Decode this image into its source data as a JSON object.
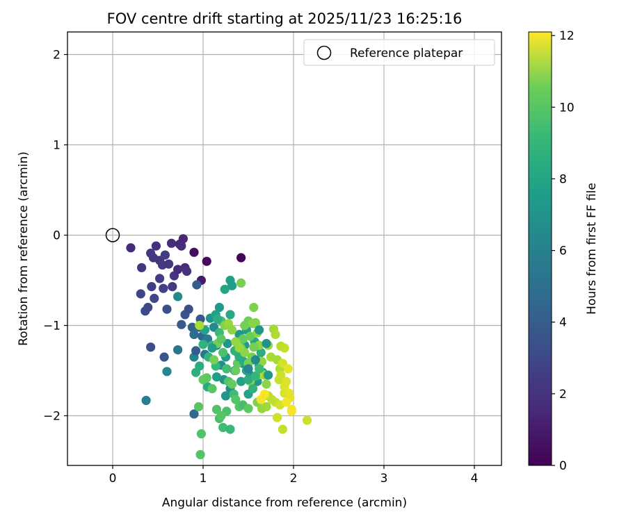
{
  "chart_data": {
    "type": "scatter",
    "title": "FOV centre drift starting at 2025/11/23 16:25:16",
    "xlabel": "Angular distance from reference (arcmin)",
    "ylabel": "Rotation from reference (arcmin)",
    "xlim": [
      -0.5,
      4.3
    ],
    "ylim": [
      -2.55,
      2.25
    ],
    "xticks": [
      0,
      1,
      2,
      3,
      4
    ],
    "yticks": [
      2,
      1,
      0,
      -1,
      -2
    ],
    "xtick_labels": [
      "0",
      "1",
      "2",
      "3",
      "4"
    ],
    "ytick_labels": [
      "2",
      "1",
      "0",
      "−1",
      "−2"
    ],
    "grid": true,
    "legend": {
      "position": "top-right",
      "entries": [
        "Reference platepar"
      ]
    },
    "reference_point": {
      "x": 0,
      "y": 0,
      "label": "Reference platepar"
    },
    "colorbar": {
      "label": "Hours from first FF file",
      "min": 0,
      "max": 12.1,
      "ticks": [
        0,
        2,
        4,
        6,
        8,
        10,
        12
      ],
      "tick_labels": [
        "0",
        "2",
        "4",
        "6",
        "8",
        "10",
        "12"
      ],
      "colormap": "viridis"
    },
    "points": [
      [
        0.2,
        -0.14,
        1.5
      ],
      [
        0.32,
        -0.36,
        1.8
      ],
      [
        0.42,
        -0.2,
        2.0
      ],
      [
        0.45,
        -0.25,
        1.9
      ],
      [
        0.48,
        -0.12,
        1.7
      ],
      [
        0.52,
        -0.28,
        2.0
      ],
      [
        0.55,
        -0.33,
        2.2
      ],
      [
        0.58,
        -0.22,
        2.1
      ],
      [
        0.62,
        -0.32,
        1.9
      ],
      [
        0.65,
        -0.09,
        1.6
      ],
      [
        0.68,
        -0.45,
        1.9
      ],
      [
        0.72,
        -0.38,
        1.5
      ],
      [
        0.74,
        -0.1,
        1.4
      ],
      [
        0.76,
        -0.12,
        1.5
      ],
      [
        0.78,
        -0.04,
        1.3
      ],
      [
        0.8,
        -0.36,
        1.6
      ],
      [
        0.82,
        -0.4,
        1.8
      ],
      [
        0.9,
        -0.19,
        0.4
      ],
      [
        0.98,
        -0.5,
        0.9
      ],
      [
        1.04,
        -0.29,
        0.3
      ],
      [
        1.42,
        -0.25,
        0.1
      ],
      [
        0.31,
        -0.65,
        2.5
      ],
      [
        0.36,
        -0.84,
        2.7
      ],
      [
        0.39,
        -0.8,
        2.6
      ],
      [
        0.43,
        -0.57,
        2.3
      ],
      [
        0.46,
        -0.7,
        2.6
      ],
      [
        0.52,
        -0.48,
        2.2
      ],
      [
        0.56,
        -0.59,
        2.4
      ],
      [
        0.6,
        -0.82,
        3.0
      ],
      [
        0.66,
        -0.57,
        2.1
      ],
      [
        0.72,
        -0.68,
        5.8
      ],
      [
        0.76,
        -0.99,
        3.4
      ],
      [
        0.8,
        -0.88,
        3.2
      ],
      [
        0.84,
        -0.82,
        3.0
      ],
      [
        0.88,
        -1.02,
        3.8
      ],
      [
        0.9,
        -1.1,
        4.3
      ],
      [
        0.93,
        -0.55,
        3.5
      ],
      [
        0.97,
        -0.93,
        3.3
      ],
      [
        0.42,
        -1.24,
        3.0
      ],
      [
        0.57,
        -1.35,
        3.2
      ],
      [
        0.72,
        -1.27,
        4.6
      ],
      [
        0.9,
        -1.35,
        5.5
      ],
      [
        0.37,
        -1.83,
        5.2
      ],
      [
        0.6,
        -1.51,
        5.6
      ],
      [
        0.9,
        -1.98,
        4.2
      ],
      [
        0.92,
        -1.28,
        3.6
      ],
      [
        0.96,
        -1.02,
        3.8
      ],
      [
        0.99,
        -1.12,
        4.0
      ],
      [
        1.02,
        -1.32,
        4.8
      ],
      [
        1.05,
        -1.15,
        5.0
      ],
      [
        1.08,
        -0.92,
        6.2
      ],
      [
        1.12,
        -1.02,
        5.8
      ],
      [
        1.15,
        -1.22,
        5.4
      ],
      [
        1.18,
        -0.8,
        6.5
      ],
      [
        1.2,
        -1.44,
        6.0
      ],
      [
        1.23,
        -1.6,
        6.2
      ],
      [
        1.25,
        -1.35,
        6.6
      ],
      [
        1.27,
        -1.2,
        6.4
      ],
      [
        1.3,
        -0.5,
        6.8
      ],
      [
        1.32,
        -0.56,
        6.7
      ],
      [
        1.24,
        -0.6,
        7.0
      ],
      [
        1.35,
        -1.5,
        5.8
      ],
      [
        1.38,
        -1.3,
        6.0
      ],
      [
        1.4,
        -1.1,
        6.4
      ],
      [
        1.42,
        -1.62,
        6.9
      ],
      [
        1.44,
        -1.42,
        6.3
      ],
      [
        1.46,
        -1.22,
        6.6
      ],
      [
        1.48,
        -1.05,
        6.7
      ],
      [
        1.5,
        -1.76,
        7.0
      ],
      [
        1.52,
        -1.55,
        6.5
      ],
      [
        1.55,
        -1.38,
        6.8
      ],
      [
        1.57,
        -1.18,
        7.2
      ],
      [
        1.6,
        -1.62,
        6.4
      ],
      [
        1.62,
        -1.44,
        7.0
      ],
      [
        1.64,
        -1.3,
        7.5
      ],
      [
        1.66,
        -1.52,
        6.9
      ],
      [
        1.3,
        -1.7,
        5.9
      ],
      [
        1.25,
        -1.78,
        6.3
      ],
      [
        1.15,
        -1.57,
        6.8
      ],
      [
        1.05,
        -1.68,
        7.3
      ],
      [
        1.0,
        -1.21,
        7.8
      ],
      [
        0.96,
        -1.45,
        7.4
      ],
      [
        0.92,
        -1.52,
        7.6
      ],
      [
        1.06,
        -1.35,
        7.9
      ],
      [
        1.1,
        -1.22,
        8.0
      ],
      [
        1.14,
        -1.45,
        8.1
      ],
      [
        1.18,
        -1.08,
        8.2
      ],
      [
        1.2,
        -0.95,
        8.5
      ],
      [
        1.22,
        -1.3,
        8.6
      ],
      [
        1.26,
        -1.48,
        8.4
      ],
      [
        1.28,
        -1.62,
        8.7
      ],
      [
        1.34,
        -1.76,
        8.3
      ],
      [
        1.36,
        -1.82,
        8.8
      ],
      [
        1.4,
        -1.9,
        8.9
      ],
      [
        1.44,
        -1.88,
        8.5
      ],
      [
        1.5,
        -1.92,
        9.0
      ],
      [
        1.22,
        -2.13,
        8.3
      ],
      [
        1.3,
        -2.15,
        8.1
      ],
      [
        1.26,
        -1.95,
        8.6
      ],
      [
        1.18,
        -2.03,
        8.5
      ],
      [
        0.98,
        -2.2,
        8.7
      ],
      [
        0.97,
        -2.43,
        8.8
      ],
      [
        0.95,
        -1.9,
        8.9
      ],
      [
        1.0,
        -1.6,
        9.1
      ],
      [
        1.04,
        -1.58,
        9.0
      ],
      [
        1.1,
        -1.7,
        8.9
      ],
      [
        1.15,
        -1.93,
        8.7
      ],
      [
        1.2,
        -2.0,
        8.8
      ],
      [
        1.32,
        -1.65,
        9.2
      ],
      [
        1.36,
        -1.5,
        9.3
      ],
      [
        1.38,
        -1.42,
        9.1
      ],
      [
        1.42,
        -1.25,
        9.4
      ],
      [
        1.44,
        -1.15,
        9.2
      ],
      [
        1.46,
        -1.0,
        9.5
      ],
      [
        1.5,
        -0.95,
        9.4
      ],
      [
        1.52,
        -1.12,
        9.3
      ],
      [
        1.54,
        -1.35,
        9.6
      ],
      [
        1.56,
        -0.8,
        9.7
      ],
      [
        1.58,
        -0.97,
        9.8
      ],
      [
        1.6,
        -1.08,
        9.9
      ],
      [
        1.62,
        -1.22,
        10.0
      ],
      [
        1.65,
        -1.4,
        10.1
      ],
      [
        1.68,
        -1.55,
        10.2
      ],
      [
        1.7,
        -1.65,
        10.0
      ],
      [
        1.72,
        -1.22,
        10.3
      ],
      [
        1.75,
        -1.35,
        10.5
      ],
      [
        1.78,
        -1.04,
        10.4
      ],
      [
        1.8,
        -1.1,
        10.6
      ],
      [
        1.82,
        -1.38,
        10.4
      ],
      [
        1.85,
        -1.48,
        10.6
      ],
      [
        1.42,
        -0.53,
        9.6
      ],
      [
        1.55,
        -0.98,
        9.9
      ],
      [
        1.6,
        -1.85,
        9.7
      ],
      [
        1.65,
        -1.92,
        10.1
      ],
      [
        1.7,
        -1.9,
        10.3
      ],
      [
        1.72,
        -1.78,
        10.8
      ],
      [
        1.76,
        -1.82,
        10.9
      ],
      [
        1.8,
        -1.85,
        11.0
      ],
      [
        1.84,
        -1.6,
        11.1
      ],
      [
        1.86,
        -1.55,
        11.2
      ],
      [
        1.88,
        -1.42,
        11.3
      ],
      [
        1.9,
        -1.75,
        11.4
      ],
      [
        1.92,
        -1.62,
        11.5
      ],
      [
        1.94,
        -1.48,
        11.6
      ],
      [
        1.96,
        -1.8,
        11.7
      ],
      [
        1.98,
        -1.93,
        11.8
      ],
      [
        1.85,
        -1.88,
        11.3
      ],
      [
        1.82,
        -2.02,
        11.2
      ],
      [
        1.88,
        -2.15,
        11.0
      ],
      [
        2.15,
        -2.05,
        11.2
      ],
      [
        1.9,
        -1.68,
        11.5
      ],
      [
        1.95,
        -1.75,
        11.6
      ],
      [
        1.98,
        -1.95,
        12.0
      ],
      [
        1.92,
        -1.85,
        11.9
      ],
      [
        1.86,
        -1.23,
        10.8
      ],
      [
        1.9,
        -1.25,
        11.0
      ],
      [
        1.68,
        -1.76,
        12.0
      ],
      [
        1.64,
        -1.82,
        11.9
      ],
      [
        1.6,
        -1.55,
        10.8
      ],
      [
        1.52,
        -1.62,
        9.8
      ],
      [
        1.3,
        -0.88,
        7.2
      ],
      [
        1.35,
        -1.28,
        7.8
      ],
      [
        1.4,
        -1.35,
        7.6
      ],
      [
        1.45,
        -1.4,
        7.3
      ],
      [
        1.48,
        -1.5,
        7.1
      ],
      [
        1.5,
        -1.6,
        7.5
      ],
      [
        1.55,
        -1.7,
        7.8
      ],
      [
        1.58,
        -1.56,
        8.0
      ],
      [
        1.62,
        -1.48,
        8.2
      ],
      [
        1.12,
        -1.38,
        9.6
      ],
      [
        1.16,
        -1.2,
        9.4
      ],
      [
        1.2,
        -1.15,
        9.0
      ],
      [
        1.24,
        -1.0,
        9.8
      ],
      [
        1.28,
        -0.98,
        10.2
      ],
      [
        1.32,
        -1.05,
        10.0
      ],
      [
        1.36,
        -1.18,
        10.1
      ],
      [
        1.4,
        -1.25,
        10.2
      ],
      [
        1.46,
        -1.3,
        10.0
      ],
      [
        1.5,
        -1.42,
        9.6
      ],
      [
        1.56,
        -1.24,
        9.5
      ],
      [
        1.14,
        -0.88,
        6.9
      ],
      [
        1.16,
        -0.93,
        7.5
      ],
      [
        1.02,
        -1.05,
        7.0
      ],
      [
        0.96,
        -1.0,
        10.5
      ],
      [
        1.1,
        -1.25,
        6.8
      ],
      [
        1.5,
        -1.48,
        5.5
      ],
      [
        1.58,
        -1.38,
        5.7
      ],
      [
        1.62,
        -1.05,
        6.4
      ],
      [
        1.7,
        -1.2,
        6.2
      ],
      [
        1.72,
        -1.55,
        6.5
      ]
    ]
  }
}
